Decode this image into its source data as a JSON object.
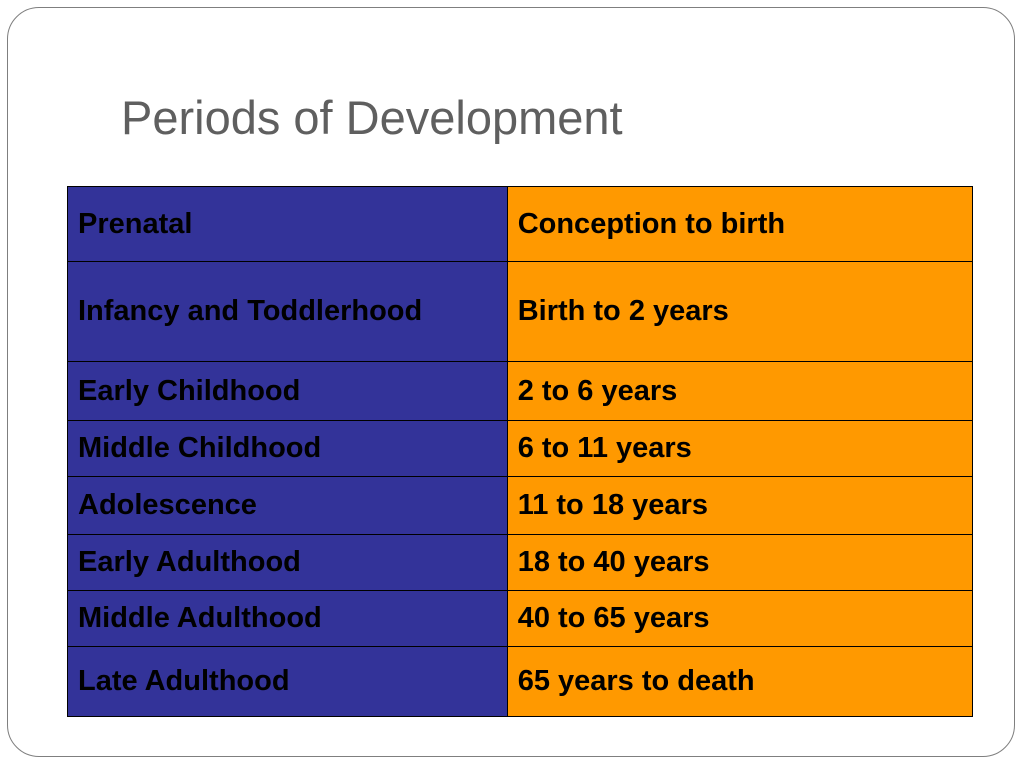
{
  "slide": {
    "title": "Periods of Development"
  },
  "table": {
    "rows": [
      {
        "period": "Prenatal",
        "range": "Conception to birth"
      },
      {
        "period": "Infancy and Toddlerhood",
        "range": "Birth to 2 years"
      },
      {
        "period": "Early Childhood",
        "range": "2 to 6 years"
      },
      {
        "period": "Middle Childhood",
        "range": "6 to 11 years"
      },
      {
        "period": "Adolescence",
        "range": "11 to 18 years"
      },
      {
        "period": "Early Adulthood",
        "range": "18 to 40 years"
      },
      {
        "period": "Middle Adulthood",
        "range": "40 to 65 years"
      },
      {
        "period": "Late Adulthood",
        "range": "65 years to death"
      }
    ]
  },
  "colors": {
    "period_column": "#333399",
    "range_column": "#ff9900",
    "title_text": "#5f5f5f"
  }
}
